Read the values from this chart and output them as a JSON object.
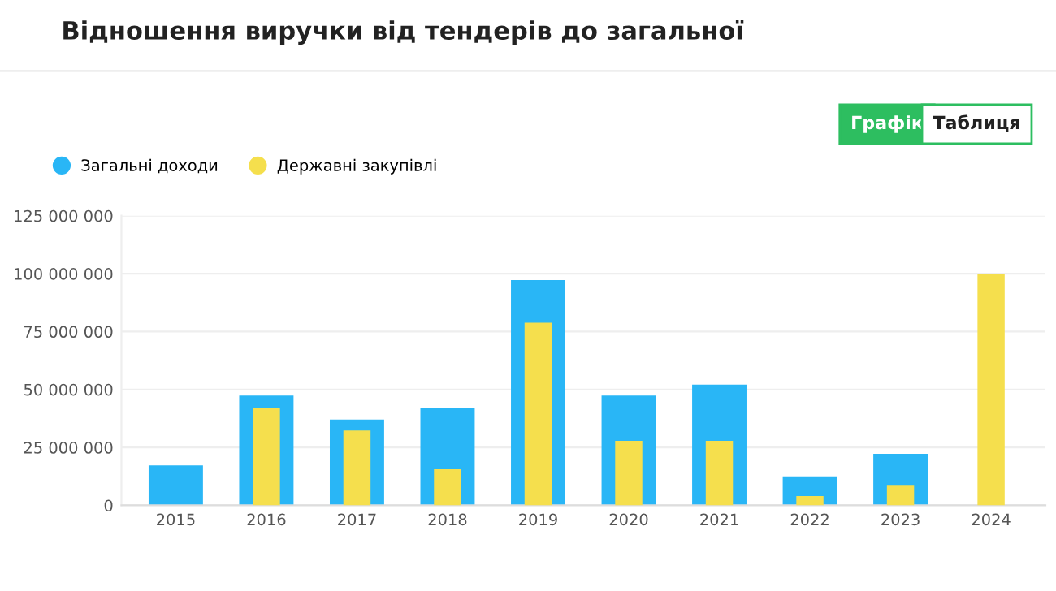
{
  "chart_data": {
    "type": "bar",
    "title": "Відношення виручки від тендерів до загальної",
    "categories": [
      "2015",
      "2016",
      "2017",
      "2018",
      "2019",
      "2020",
      "2021",
      "2022",
      "2023",
      "2024"
    ],
    "series": [
      {
        "name": "Загальні доходи",
        "color": "#29b6f6",
        "values": [
          17200000,
          47400000,
          37000000,
          42000000,
          97200000,
          47400000,
          52100000,
          12500000,
          22200000,
          null
        ]
      },
      {
        "name": "Державні закупівлі",
        "color": "#f5df4d",
        "values": [
          null,
          42000000,
          32300000,
          15600000,
          78800000,
          27800000,
          27800000,
          4000000,
          8500000,
          100000000
        ]
      }
    ],
    "ylim": [
      0,
      125000000
    ],
    "yticks": [
      0,
      {
        "value": 25000000,
        "label": "25 000 000"
      },
      {
        "value": 50000000,
        "label": "50 000 000"
      },
      {
        "value": 75000000,
        "label": "75 000 000"
      },
      {
        "value": 100000000,
        "label": "100 000 000"
      },
      {
        "value": 125000000,
        "label": "125 000 000"
      }
    ],
    "grid": "y",
    "legend": "top left",
    "annotations": [
      "Графік",
      "Таблиця"
    ]
  }
}
